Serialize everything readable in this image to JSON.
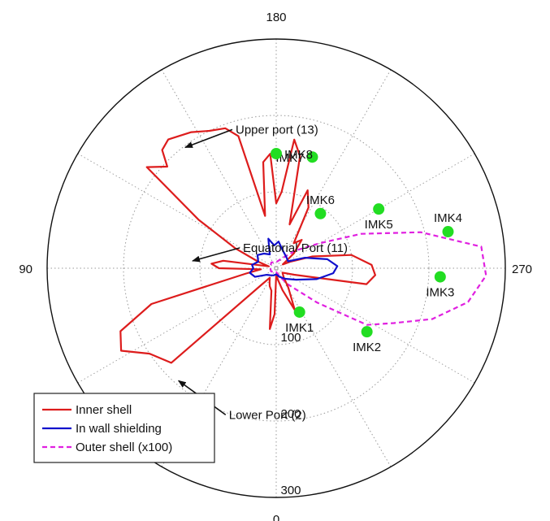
{
  "chart_data": {
    "type": "polar",
    "angle_unit": "degrees",
    "angle_zero_position": "bottom",
    "angle_direction": "counterclockwise",
    "angle_tick_labels": [
      "0",
      "90",
      "180",
      "270"
    ],
    "radial_range": [
      0,
      300
    ],
    "radial_tick_labels": [
      "100",
      "200",
      "300"
    ],
    "grid": true,
    "legend_position": "bottom-left",
    "series": [
      {
        "name": "Inner shell",
        "color": "#dd1c1c",
        "points": [
          {
            "theta": 0,
            "r": 8
          },
          {
            "theta": 8,
            "r": 15
          },
          {
            "theta": 16,
            "r": 30
          },
          {
            "theta": 24,
            "r": 60
          },
          {
            "theta": 32,
            "r": 30
          },
          {
            "theta": 40,
            "r": 15
          },
          {
            "theta": 55,
            "r": 10
          },
          {
            "theta": 70,
            "r": 25
          },
          {
            "theta": 80,
            "r": 120
          },
          {
            "theta": 86,
            "r": 130
          },
          {
            "theta": 92,
            "r": 125
          },
          {
            "theta": 100,
            "r": 100
          },
          {
            "theta": 108,
            "r": 50
          },
          {
            "theta": 115,
            "r": 20
          },
          {
            "theta": 120,
            "r": 10
          },
          {
            "theta": 130,
            "r": 30
          },
          {
            "theta": 138,
            "r": 50
          },
          {
            "theta": 145,
            "r": 40
          },
          {
            "theta": 152,
            "r": 90
          },
          {
            "theta": 158,
            "r": 110
          },
          {
            "theta": 163,
            "r": 60
          },
          {
            "theta": 168,
            "r": 150
          },
          {
            "theta": 172,
            "r": 170
          },
          {
            "theta": 176,
            "r": 100
          },
          {
            "theta": 180,
            "r": 85
          },
          {
            "theta": 183,
            "r": 150
          },
          {
            "theta": 187,
            "r": 140
          },
          {
            "theta": 192,
            "r": 70
          },
          {
            "theta": 196,
            "r": 180
          },
          {
            "theta": 200,
            "r": 195
          },
          {
            "theta": 206,
            "r": 200
          },
          {
            "theta": 212,
            "r": 210
          },
          {
            "theta": 220,
            "r": 220
          },
          {
            "theta": 224,
            "r": 215
          },
          {
            "theta": 227,
            "r": 195
          },
          {
            "theta": 232,
            "r": 215
          },
          {
            "theta": 238,
            "r": 120
          },
          {
            "theta": 244,
            "r": 60
          },
          {
            "theta": 250,
            "r": 25
          },
          {
            "theta": 256,
            "r": 10
          },
          {
            "theta": 262,
            "r": 70
          },
          {
            "theta": 266,
            "r": 85
          },
          {
            "theta": 270,
            "r": 75
          },
          {
            "theta": 274,
            "r": 20
          },
          {
            "theta": 280,
            "r": 40
          },
          {
            "theta": 286,
            "r": 170
          },
          {
            "theta": 292,
            "r": 220
          },
          {
            "theta": 298,
            "r": 230
          },
          {
            "theta": 304,
            "r": 200
          },
          {
            "theta": 312,
            "r": 185
          },
          {
            "theta": 318,
            "r": 30
          },
          {
            "theta": 326,
            "r": 15
          },
          {
            "theta": 334,
            "r": 20
          },
          {
            "theta": 340,
            "r": 25
          },
          {
            "theta": 348,
            "r": 30
          },
          {
            "theta": 354,
            "r": 80
          },
          {
            "theta": 358,
            "r": 60
          }
        ]
      },
      {
        "name": "In wall shielding",
        "color": "#1010cc",
        "points": [
          {
            "theta": 0,
            "r": 8
          },
          {
            "theta": 20,
            "r": 12
          },
          {
            "theta": 40,
            "r": 18
          },
          {
            "theta": 60,
            "r": 30
          },
          {
            "theta": 75,
            "r": 55
          },
          {
            "theta": 85,
            "r": 75
          },
          {
            "theta": 92,
            "r": 80
          },
          {
            "theta": 100,
            "r": 68
          },
          {
            "theta": 110,
            "r": 40
          },
          {
            "theta": 120,
            "r": 18
          },
          {
            "theta": 140,
            "r": 20
          },
          {
            "theta": 160,
            "r": 25
          },
          {
            "theta": 175,
            "r": 35
          },
          {
            "theta": 185,
            "r": 30
          },
          {
            "theta": 195,
            "r": 40
          },
          {
            "theta": 205,
            "r": 20
          },
          {
            "theta": 220,
            "r": 25
          },
          {
            "theta": 235,
            "r": 30
          },
          {
            "theta": 250,
            "r": 25
          },
          {
            "theta": 262,
            "r": 32
          },
          {
            "theta": 270,
            "r": 30
          },
          {
            "theta": 280,
            "r": 35
          },
          {
            "theta": 292,
            "r": 30
          },
          {
            "theta": 305,
            "r": 15
          },
          {
            "theta": 320,
            "r": 12
          },
          {
            "theta": 340,
            "r": 10
          }
        ]
      },
      {
        "name": "Outer shell (x100)",
        "color": "#e020e0",
        "style": "dashed",
        "points": [
          {
            "theta": 0,
            "r": 5
          },
          {
            "theta": 20,
            "r": 10
          },
          {
            "theta": 35,
            "r": 25
          },
          {
            "theta": 50,
            "r": 70
          },
          {
            "theta": 58,
            "r": 140
          },
          {
            "theta": 65,
            "r": 170
          },
          {
            "theta": 72,
            "r": 215
          },
          {
            "theta": 80,
            "r": 255
          },
          {
            "theta": 88,
            "r": 275
          },
          {
            "theta": 96,
            "r": 270
          },
          {
            "theta": 104,
            "r": 195
          },
          {
            "theta": 112,
            "r": 120
          },
          {
            "theta": 120,
            "r": 65
          },
          {
            "theta": 132,
            "r": 35
          },
          {
            "theta": 150,
            "r": 15
          },
          {
            "theta": 180,
            "r": 8
          },
          {
            "theta": 220,
            "r": 10
          },
          {
            "theta": 260,
            "r": 8
          },
          {
            "theta": 300,
            "r": 8
          },
          {
            "theta": 330,
            "r": 6
          }
        ]
      }
    ],
    "markers": [
      {
        "label": "IMK1",
        "theta": 28,
        "r": 65
      },
      {
        "label": "IMK2",
        "theta": 55,
        "r": 145
      },
      {
        "label": "IMK3",
        "theta": 87,
        "r": 215
      },
      {
        "label": "IMK4",
        "theta": 102,
        "r": 230
      },
      {
        "label": "IMK5",
        "theta": 120,
        "r": 155
      },
      {
        "label": "IMK6",
        "theta": 141,
        "r": 92
      },
      {
        "label": "IMK7",
        "theta": 162,
        "r": 153
      },
      {
        "label": "IMK8",
        "theta": 180,
        "r": 150
      }
    ],
    "marker_color": "#22dd22",
    "annotations": [
      {
        "text": "Upper port (13)",
        "theta": 217,
        "r": 198
      },
      {
        "text": "Equatorial Port (11)",
        "theta": 265,
        "r": 110
      },
      {
        "text": "Lower Port (2)",
        "theta": 319,
        "r": 195
      }
    ]
  }
}
